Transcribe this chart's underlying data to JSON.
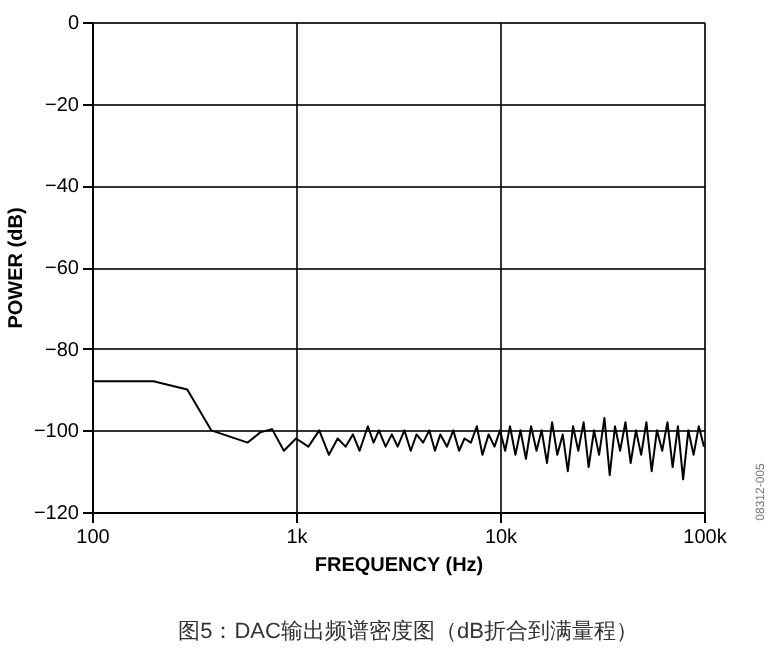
{
  "chart_data": {
    "type": "line",
    "xlabel": "FREQUENCY (Hz)",
    "ylabel": "POWER (dB)",
    "annotations": [
      "08312-005",
      "图5：DAC输出频谱密度图（dB折合到满量程）"
    ],
    "log": "x",
    "grid": true,
    "line_style": "solid",
    "marker": "none",
    "xlim": [
      100,
      100000
    ],
    "xticks": [
      100,
      {
        "value": 1000,
        "label": "1k"
      },
      {
        "value": 10000,
        "label": "10k"
      },
      {
        "value": 100000,
        "label": "100k"
      }
    ],
    "ylim": [
      -120,
      0
    ],
    "yticks": [
      -120,
      -100,
      -80,
      -60,
      -40,
      -20,
      0
    ],
    "series": [
      {
        "color": "#000000",
        "x": [
          100,
          200,
          293,
          384,
          580,
          668,
          763,
          872,
          1000,
          1150,
          1300,
          1450,
          1600,
          1750,
          1900,
          2050,
          2250,
          2400,
          2550,
          2750,
          2950,
          3150,
          3400,
          3650,
          3900,
          4200,
          4500,
          4800,
          5100,
          5500,
          5900,
          6300,
          6700,
          7200,
          7700,
          8200,
          8800,
          9400,
          10000,
          10600,
          11200,
          11900,
          12600,
          13400,
          14200,
          15100,
          16000,
          17000,
          18000,
          19100,
          20300,
          21500,
          22800,
          24200,
          25700,
          27200,
          28900,
          30600,
          32500,
          34500,
          36600,
          38800,
          41200,
          43700,
          46400,
          49200,
          52200,
          55400,
          58800,
          62400,
          66200,
          70200,
          74500,
          79000,
          83800,
          88900,
          94300,
          100000
        ],
        "values": [
          -88,
          -88,
          -90,
          -100,
          -103,
          -100.5,
          -99.7,
          -105,
          -102,
          -104,
          -100,
          -106,
          -102,
          -104,
          -101,
          -105,
          -99,
          -103,
          -100,
          -104,
          -101,
          -104,
          -100,
          -105,
          -101,
          -103,
          -100,
          -105,
          -101,
          -104,
          -100,
          -105,
          -102,
          -103,
          -99,
          -106,
          -101,
          -104,
          -100,
          -105,
          -99,
          -106,
          -100,
          -107,
          -99,
          -105,
          -100,
          -108,
          -98,
          -106,
          -101,
          -110,
          -99,
          -105,
          -98,
          -109,
          -100,
          -106,
          -97,
          -111,
          -99,
          -105,
          -98,
          -108,
          -100,
          -106,
          -98,
          -110,
          -100,
          -105,
          -98,
          -109,
          -99,
          -112,
          -100,
          -106,
          -99,
          -104
        ]
      }
    ]
  }
}
